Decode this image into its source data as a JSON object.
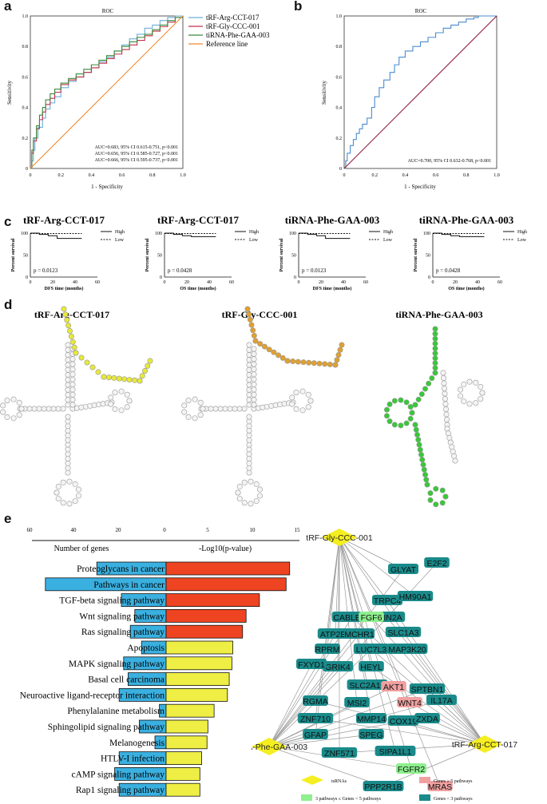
{
  "panel_labels": [
    "a",
    "b",
    "c",
    "d",
    "e",
    "f"
  ],
  "chart_data": [
    {
      "panel": "a",
      "type": "line",
      "title": "ROC",
      "xlabel": "1 - Specificity",
      "ylabel": "Sensitivity",
      "xlim": [
        0,
        1.0
      ],
      "ylim": [
        0,
        1.0
      ],
      "ticks": [
        "0",
        "0.2",
        "0.4",
        "0.6",
        "0.8",
        "1.0"
      ],
      "legend_position": "top-right",
      "series": [
        {
          "name": "tRF-Arg-CCT-017",
          "color": "#6aaed6",
          "x": [
            0,
            0.01,
            0.02,
            0.03,
            0.05,
            0.08,
            0.1,
            0.13,
            0.16,
            0.2,
            0.25,
            0.3,
            0.35,
            0.4,
            0.45,
            0.5,
            0.55,
            0.6,
            0.65,
            0.7,
            0.75,
            0.8,
            0.85,
            0.9,
            0.95,
            1.0
          ],
          "y": [
            0,
            0.05,
            0.12,
            0.2,
            0.27,
            0.33,
            0.39,
            0.43,
            0.47,
            0.53,
            0.57,
            0.6,
            0.63,
            0.66,
            0.7,
            0.73,
            0.77,
            0.81,
            0.85,
            0.88,
            0.92,
            0.94,
            0.97,
            0.99,
            1.0,
            1.0
          ]
        },
        {
          "name": "tRF-Gly-CCC-001",
          "color": "#c0304a",
          "x": [
            0,
            0.01,
            0.02,
            0.04,
            0.06,
            0.08,
            0.1,
            0.13,
            0.16,
            0.2,
            0.25,
            0.3,
            0.35,
            0.4,
            0.45,
            0.5,
            0.55,
            0.6,
            0.65,
            0.7,
            0.75,
            0.8,
            0.85,
            0.9,
            0.95,
            1.0
          ],
          "y": [
            0,
            0.1,
            0.18,
            0.26,
            0.32,
            0.37,
            0.42,
            0.46,
            0.5,
            0.55,
            0.58,
            0.6,
            0.63,
            0.66,
            0.69,
            0.72,
            0.75,
            0.78,
            0.81,
            0.84,
            0.87,
            0.9,
            0.93,
            0.96,
            0.99,
            1.0
          ]
        },
        {
          "name": "tiRNA-Phe-GAA-003",
          "color": "#3a8a3a",
          "x": [
            0,
            0.01,
            0.02,
            0.04,
            0.06,
            0.08,
            0.1,
            0.13,
            0.16,
            0.2,
            0.25,
            0.3,
            0.35,
            0.4,
            0.45,
            0.5,
            0.55,
            0.6,
            0.65,
            0.7,
            0.75,
            0.8,
            0.85,
            0.9,
            0.95,
            1.0
          ],
          "y": [
            0,
            0.12,
            0.2,
            0.28,
            0.35,
            0.4,
            0.45,
            0.49,
            0.52,
            0.56,
            0.59,
            0.62,
            0.65,
            0.68,
            0.71,
            0.74,
            0.77,
            0.8,
            0.83,
            0.86,
            0.88,
            0.91,
            0.94,
            0.97,
            0.99,
            1.0
          ]
        },
        {
          "name": "Reference line",
          "color": "#f28a30",
          "x": [
            0,
            1.0
          ],
          "y": [
            0,
            1.0
          ]
        }
      ],
      "annotations": [
        {
          "text": "AUC=0.683, 95% CI 0.615-0.751, p<0.001",
          "color": "#6aaed6"
        },
        {
          "text": "AUC=0.656, 95% CI 0.585-0.727, p<0.001",
          "color": "#c0304a"
        },
        {
          "text": "AUC=0.666, 95% CI 0.595-0.737, p<0.001",
          "color": "#3a8a3a"
        }
      ]
    },
    {
      "panel": "b",
      "type": "line",
      "title": "ROC",
      "xlabel": "1 - Specificity",
      "ylabel": "Sensitivity",
      "xlim": [
        0,
        1.0
      ],
      "ylim": [
        0,
        1.0
      ],
      "ticks": [
        "0",
        "0.2",
        "0.4",
        "0.6",
        "0.8",
        "1.0"
      ],
      "series": [
        {
          "color": "#4a8cd0",
          "x": [
            0,
            0.01,
            0.02,
            0.04,
            0.06,
            0.08,
            0.1,
            0.12,
            0.15,
            0.18,
            0.2,
            0.23,
            0.26,
            0.3,
            0.33,
            0.36,
            0.4,
            0.45,
            0.5,
            0.55,
            0.6,
            0.65,
            0.7,
            0.75,
            0.8,
            0.85,
            0.88,
            1.0
          ],
          "y": [
            0,
            0.05,
            0.1,
            0.15,
            0.19,
            0.23,
            0.26,
            0.29,
            0.33,
            0.4,
            0.47,
            0.53,
            0.58,
            0.63,
            0.68,
            0.73,
            0.77,
            0.8,
            0.83,
            0.86,
            0.89,
            0.92,
            0.94,
            0.96,
            0.98,
            0.99,
            1.0,
            1.0
          ]
        },
        {
          "color": "#8b1e3f",
          "x": [
            0,
            1.0
          ],
          "y": [
            0,
            1.0
          ]
        }
      ],
      "annotations": [
        {
          "text": "AUC=0.700, 95% CI 0.632-0.768, p<0.001",
          "color": "#222222"
        }
      ]
    },
    {
      "panel": "c",
      "type": "line",
      "plots": [
        {
          "title": "tRF-Arg-CCT-017",
          "xlabel": "DFS time (months)",
          "p": "p = 0.0123",
          "high_end": 88
        },
        {
          "title": "tRF-Arg-CCT-017",
          "xlabel": "OS time (months)",
          "p": "p = 0.0428",
          "high_end": 92
        },
        {
          "title": "tiRNA-Phe-GAA-003",
          "xlabel": "DFS time (months)",
          "p": "p = 0.0123",
          "high_end": 88
        },
        {
          "title": "tiRNA-Phe-GAA-003",
          "xlabel": "OS time (months)",
          "p": "p = 0.0428",
          "high_end": 92
        }
      ],
      "ylabel": "Percent survival",
      "yticks": [
        "0",
        "50",
        "100"
      ],
      "xticks": [
        "0",
        "20",
        "40",
        "60"
      ],
      "legend": [
        "High",
        "Low"
      ]
    },
    {
      "panel": "e",
      "type": "bar",
      "left_axis_label": "Number of genes",
      "right_axis_label": "-Log10(p-value)",
      "left_ticks": [
        "60",
        "40",
        "20",
        "0"
      ],
      "right_ticks": [
        "5",
        "10",
        "15"
      ],
      "categories": [
        "Proteoglycans in cancer",
        "Pathways in cancer",
        "TGF-beta signaling pathway",
        "Wnt signaling pathway",
        "Ras signaling pathway",
        "Apoptosis",
        "MAPK signaling pathway",
        "Basal cell carcinoma",
        "Neuroactive ligand-receptor interaction",
        "Phenylalanine metabolism",
        "Sphingolipid signaling pathway",
        "Melanogenesis",
        "HTLV-I infection",
        "cAMP signaling pathway",
        "Rap1 signaling pathway"
      ],
      "gene_counts": [
        31,
        54,
        20,
        14,
        16,
        11,
        19,
        17,
        21,
        3,
        12,
        5,
        21,
        23,
        21
      ],
      "neg_log10_p": [
        13.9,
        13.5,
        10.5,
        9.0,
        8.6,
        7.5,
        7.4,
        7.1,
        6.9,
        5.4,
        4.7,
        4.6,
        4.0,
        3.8,
        3.8
      ],
      "colors": {
        "genes": "#3ab0e0",
        "significant": "#ee4422",
        "other": "#eeee44"
      }
    }
  ],
  "panel_d": {
    "titles": [
      "tRF-Arg-CCT-017",
      "tRF-Gly-CCC-001",
      "tiRNA-Phe-GAA-003"
    ],
    "highlight_colors": [
      "#e8e83a",
      "#e0a030",
      "#38c838"
    ],
    "numbers": [
      "80",
      "90",
      "100",
      "70",
      "60",
      "50",
      "40",
      "30",
      "20",
      "10"
    ]
  },
  "network": {
    "hubs": [
      "tRF-Gly-CCC-001",
      "tiRNA-Phe-GAA-003",
      "tRF-Arg-CCT-017"
    ],
    "genes_teal": [
      "GLYAT",
      "E2F2",
      "TRPC4",
      "HM90A1",
      "CABLES1",
      "SPIN2A",
      "ATP2B3",
      "MCHR1",
      "SLC1A3",
      "RPRM",
      "LUC7L3",
      "MAP3K20",
      "GRIK4",
      "FXYD1",
      "HEYL",
      "SLC2A10",
      "SPTBN1",
      "RGMA",
      "MSI2",
      "IL17A",
      "ZNF710",
      "MMP14",
      "COX19",
      "ZXDA",
      "GFAP",
      "SPEG",
      "ZNF571",
      "SIPA1L1",
      "PPP2R1B"
    ],
    "genes_green": [
      "FGF6",
      "FGFR2"
    ],
    "genes_pink": [
      "AKT1",
      "WNT4",
      "MRAS"
    ],
    "legend": {
      "tsrnas": "tsRNAs",
      "pink": "Genes ≥ 5 pathways",
      "green": "3 pathways ≤ Genes < 5 pathways",
      "teal": "Genes < 3 pathways"
    },
    "colors": {
      "hub": "#f5ee20",
      "teal": "#1a8a8a",
      "green": "#8ef08e",
      "pink": "#f0a0a0"
    }
  }
}
